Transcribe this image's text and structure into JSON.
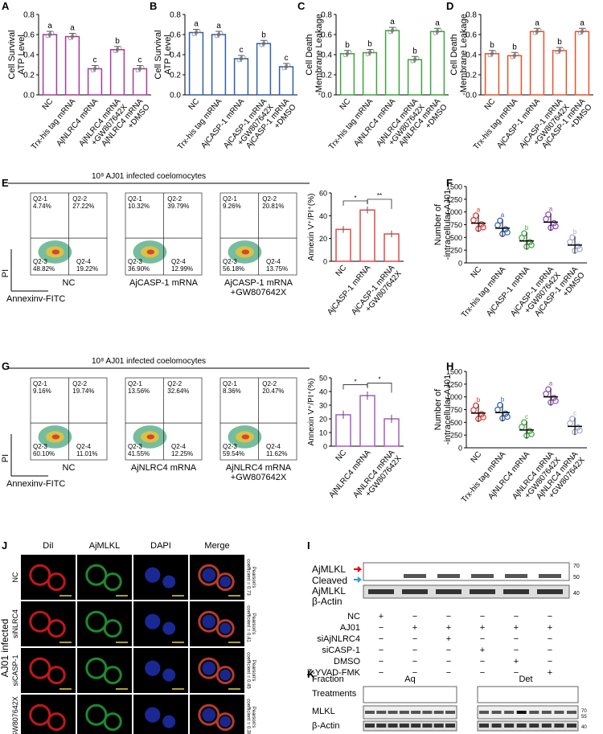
{
  "panel_letters": [
    "A",
    "B",
    "C",
    "D",
    "E",
    "F",
    "G",
    "H",
    "J",
    "I",
    "K"
  ],
  "colors": {
    "A": "#a83a9e",
    "B": "#2f5fa8",
    "C": "#3aa63a",
    "D": "#e8532a",
    "E": "#e04a4a",
    "F": "#a65cc0",
    "G_points": [
      "#e03434",
      "#2f5fa8",
      "#3aa63a",
      "#8a4cb5",
      "#a8a8d8"
    ]
  },
  "ylabels": {
    "AB": [
      "Cell Survival",
      "ATP Level"
    ],
    "CD": [
      "Cell Death",
      "-Membrane Leakage"
    ],
    "EF": "Annexin V⁺/PI⁺(%)",
    "GH": [
      "Number of",
      "-intracellular AJ01"
    ]
  },
  "chart_data": [
    {
      "panel": "A",
      "type": "bar",
      "categories": [
        "NC",
        "Trx-his tag mRNA",
        "AjNLRC4 mRNA",
        "AjNLRC4 mRNA\n+GW807642X",
        "AjNLRC4 mRNA\n+DMSO"
      ],
      "values": [
        0.6,
        0.58,
        0.26,
        0.45,
        0.26
      ],
      "letters": [
        "a",
        "a",
        "c",
        "b",
        "c"
      ],
      "ylim": [
        0,
        0.8
      ],
      "yticks": [
        "0.0",
        "0.2",
        "0.4",
        "0.6",
        "0.8"
      ]
    },
    {
      "panel": "B",
      "type": "bar",
      "categories": [
        "NC",
        "Trx-his tag mRNA",
        "AjCASP-1 mRNA",
        "AjCASP-1 mRNA\n+GW807642X",
        "AjCASP-1 mRNA\n+DMSO"
      ],
      "values": [
        0.62,
        0.6,
        0.36,
        0.51,
        0.28
      ],
      "letters": [
        "a",
        "a",
        "c",
        "b",
        "c"
      ],
      "ylim": [
        0,
        0.8
      ],
      "yticks": [
        "0.0",
        "0.2",
        "0.4",
        "0.6",
        "0.8"
      ]
    },
    {
      "panel": "C",
      "type": "bar",
      "categories": [
        "NC",
        "Trx-his tag mRNA",
        "AjNLRC4 mRNA",
        "AjNLRC4 mRNA\n+GW807642X",
        "AjNLRC4 mRNA\n+DMSO"
      ],
      "values": [
        0.41,
        0.42,
        0.64,
        0.35,
        0.63
      ],
      "letters": [
        "b",
        "b",
        "a",
        "b",
        "a"
      ],
      "ylim": [
        0,
        0.8
      ],
      "yticks": [
        "0.0",
        "0.2",
        "0.4",
        "0.6",
        "0.8"
      ]
    },
    {
      "panel": "D",
      "type": "bar",
      "categories": [
        "NC",
        "Trx-his tag mRNA",
        "AjCASP-1 mRNA",
        "AjCASP-1 mRNA\n+GW807642X",
        "AjCASP-1 mRNA\n+DMSO"
      ],
      "values": [
        0.41,
        0.39,
        0.63,
        0.44,
        0.63
      ],
      "letters": [
        "b",
        "b",
        "a",
        "b",
        "a"
      ],
      "ylim": [
        0,
        0.8
      ],
      "yticks": [
        "0.0",
        "0.2",
        "0.4",
        "0.6",
        "0.8"
      ]
    },
    {
      "panel": "E",
      "type": "bar",
      "categories": [
        "NC",
        "AjCASP-1 mRNA",
        "AjCASP-1 mRNA\n+GW807642X"
      ],
      "values": [
        28,
        45,
        24
      ],
      "ylim": [
        0,
        60
      ],
      "yticks": [
        "0",
        "20",
        "40",
        "60"
      ],
      "sig": [
        "*",
        "**"
      ]
    },
    {
      "panel": "F",
      "type": "bar",
      "categories": [
        "NC",
        "AjNLRC4 mRNA",
        "AjNLRC4 mRNA\n+GW807642X"
      ],
      "values": [
        23,
        37,
        20
      ],
      "ylim": [
        0,
        50
      ],
      "yticks": [
        "0",
        "10",
        "20",
        "30",
        "40",
        "50"
      ],
      "sig": [
        "*",
        "*"
      ]
    },
    {
      "panel": "G",
      "type": "scatter",
      "categories": [
        "NC",
        "Trx-his tag mRNA",
        "AjCASP-1 mRNA",
        "AjCASP-1 mRNA\n+GW807642X",
        "AjCASP-1 mRNA\n+DMSO"
      ],
      "means": [
        780,
        680,
        430,
        800,
        350
      ],
      "letters": [
        "a",
        "a",
        "b",
        "a",
        "b"
      ],
      "ylim": [
        0,
        1500
      ],
      "yticks": [
        "0",
        "250",
        "500",
        "750",
        "1000",
        "1250",
        "1500"
      ]
    },
    {
      "panel": "H",
      "type": "scatter",
      "categories": [
        "NC",
        "Trx-his tag mRNA",
        "AjNLRC4 mRNA",
        "AjNLRC4 mRNA\n+GW807642X",
        "AjNLRC4 mRNA\n+GW807642X"
      ],
      "means": [
        680,
        690,
        350,
        1000,
        420
      ],
      "letters": [
        "b",
        "b",
        "c",
        "a",
        "c"
      ],
      "ylim": [
        0,
        1500
      ],
      "yticks": [
        "0",
        "250",
        "500",
        "750",
        "1000",
        "1250",
        "1500"
      ]
    }
  ],
  "flow": {
    "E": {
      "title": "10⁸ AJ01 infected coelomocytes",
      "plots": [
        {
          "label": "NC",
          "q": [
            "Q2-1\n4.74%",
            "Q2-2\n27.22%",
            "Q2-3\n48.82%",
            "Q2-4\n19.22%"
          ]
        },
        {
          "label": "AjCASP-1 mRNA",
          "q": [
            "Q2-1\n10.32%",
            "Q2-2\n39.79%",
            "Q2-3\n36.90%",
            "Q2-4\n12.99%"
          ]
        },
        {
          "label": "AjCASP-1 mRNA\n+GW807642X",
          "q": [
            "Q2-1\n9.26%",
            "Q2-2\n20.81%",
            "Q2-3\n56.18%",
            "Q2-4\n13.75%"
          ]
        }
      ]
    },
    "F": {
      "title": "10⁸ AJ01 infected coelomocytes",
      "plots": [
        {
          "label": "NC",
          "q": [
            "Q2-1\n9.16%",
            "Q2-2\n19.74%",
            "Q2-3\n60.10%",
            "Q2-4\n11.01%"
          ]
        },
        {
          "label": "AjNLRC4 mRNA",
          "q": [
            "Q2-1\n13.56%",
            "Q2-2\n32.64%",
            "Q2-3\n41.55%",
            "Q2-4\n12.25%"
          ]
        },
        {
          "label": "AjNLRC4 mRNA\n+GW807642X",
          "q": [
            "Q2-1\n8.36%",
            "Q2-2\n20.47%",
            "Q2-3\n59.54%",
            "Q2-4\n11.62%"
          ]
        }
      ]
    },
    "axis_pi": "PI",
    "axis_annexin": "Annexinv-FITC"
  },
  "microscopy": {
    "cols": [
      "DiI",
      "AjMLKL",
      "DAPI",
      "Merge"
    ],
    "rows": [
      {
        "label": "NC",
        "pearson": "Pearson's\ncoefficient = 0.73"
      },
      {
        "label": "siNLRC4",
        "pearson": "Pearson's\ncoefficient = 0.41"
      },
      {
        "label": "siCASP-1",
        "pearson": "Pearson's\ncoefficient = 0.45"
      },
      {
        "label": "GW807642X",
        "pearson": "Pearson's\ncoefficient = 0.38"
      }
    ],
    "side_label": "AJ01 infected"
  },
  "blot_I": {
    "labels": [
      "AjMLKL",
      "Cleaved",
      "AjMLKL",
      "β-Actin"
    ],
    "mw": [
      "70",
      "50",
      "40"
    ],
    "treatments": [
      {
        "name": "NC",
        "vals": [
          "+",
          "−",
          "−",
          "−",
          "−",
          "−"
        ]
      },
      {
        "name": "AJ01",
        "vals": [
          "−",
          "+",
          "+",
          "+",
          "+",
          "+"
        ]
      },
      {
        "name": "siAjNLRC4",
        "vals": [
          "−",
          "−",
          "+",
          "−",
          "−",
          "−"
        ]
      },
      {
        "name": "siCASP-1",
        "vals": [
          "−",
          "−",
          "−",
          "+",
          "−",
          "−"
        ]
      },
      {
        "name": "DMSO",
        "vals": [
          "−",
          "−",
          "−",
          "−",
          "+",
          "−"
        ]
      },
      {
        "name": "Z-YVAD-FMK",
        "vals": [
          "−",
          "−",
          "−",
          "−",
          "−",
          "+"
        ]
      }
    ]
  },
  "blot_K": {
    "fraction_label": "Fraction",
    "treatments_label": "Treatments",
    "groups": [
      "Aq",
      "Det"
    ],
    "rows": [
      "MLKL",
      "β-Actin"
    ],
    "mw": [
      "70",
      "55",
      "40"
    ]
  }
}
